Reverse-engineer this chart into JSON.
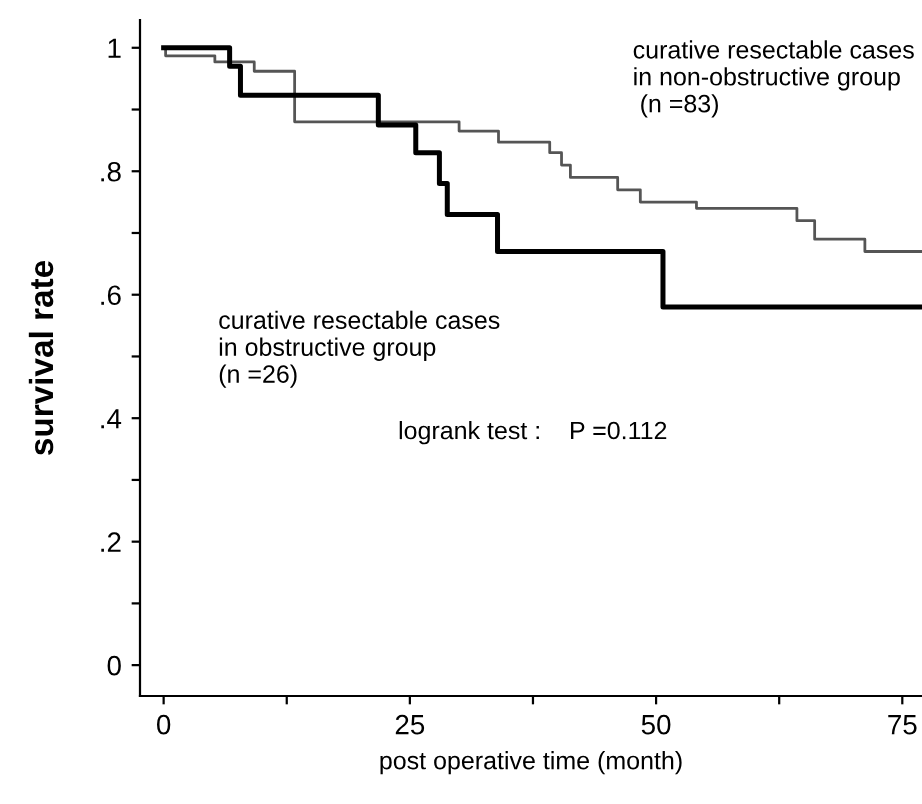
{
  "chart_data": {
    "type": "step",
    "xlabel": "post operative time (month)",
    "ylabel": "survival rate",
    "xlim": [
      -2.4,
      77
    ],
    "ylim": [
      -0.05,
      1.045
    ],
    "xticks": [
      0,
      {
        "value": 12.5,
        "label": null
      },
      25,
      {
        "value": 37.5,
        "label": null
      },
      50,
      {
        "value": 62.5,
        "label": null
      },
      75
    ],
    "yticks": [
      0,
      {
        "value": 0.1,
        "label": null
      },
      {
        "value": 0.2,
        "label": ".2"
      },
      {
        "value": 0.3,
        "label": null
      },
      {
        "value": 0.4,
        "label": ".4"
      },
      {
        "value": 0.5,
        "label": null
      },
      {
        "value": 0.6,
        "label": ".6"
      },
      {
        "value": 0.7,
        "label": null
      },
      {
        "value": 0.8,
        "label": ".8"
      },
      {
        "value": 0.9,
        "label": null
      },
      1
    ],
    "grid": false,
    "legend": false,
    "marker": "none",
    "line_style": "solid",
    "annotations": [
      "logrank test :    P =0.112"
    ],
    "series": [
      {
        "name": "curative resectable cases\nin non-obstructive group\n (n =83)",
        "color": "#555555",
        "x": [
          0,
          0.2,
          5.2,
          9.2,
          13.3,
          30,
          34,
          39.2,
          40.4,
          41.3,
          46.1,
          48.4,
          54.1,
          64.3,
          66.1,
          71.2,
          77
        ],
        "values": [
          1.0,
          0.987,
          0.977,
          0.962,
          0.88,
          0.865,
          0.847,
          0.83,
          0.81,
          0.79,
          0.77,
          0.75,
          0.74,
          0.72,
          0.69,
          0.67,
          0.67
        ]
      },
      {
        "name": "curative resectable cases\nin obstructive group\n(n =26)",
        "color": "#000000",
        "x": [
          0,
          6.7,
          7.8,
          21.8,
          25.6,
          28,
          28.8,
          33.9,
          50.7,
          77
        ],
        "values": [
          1.0,
          0.97,
          0.923,
          0.875,
          0.83,
          0.78,
          0.73,
          0.67,
          0.58,
          0.58
        ]
      }
    ]
  }
}
